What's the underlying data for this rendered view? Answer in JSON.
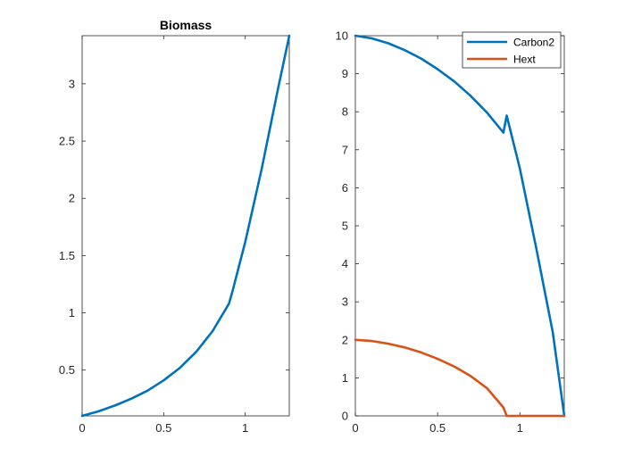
{
  "chart_data": [
    {
      "type": "line",
      "title": "Biomass",
      "xlabel": "",
      "ylabel": "",
      "xlim": [
        0,
        1.27
      ],
      "ylim": [
        0.1,
        3.42
      ],
      "xticks": [
        0,
        0.5,
        1
      ],
      "xtick_labels": [
        "0",
        "0.5",
        "1"
      ],
      "yticks": [
        0.5,
        1,
        1.5,
        2,
        2.5,
        3
      ],
      "ytick_labels": [
        "0.5",
        "1",
        "1.5",
        "2",
        "2.5",
        "3"
      ],
      "grid": false,
      "legend": null,
      "series": [
        {
          "color": "#0072BD",
          "x": [
            0,
            0.1,
            0.2,
            0.3,
            0.4,
            0.5,
            0.6,
            0.7,
            0.8,
            0.9,
            0.92,
            1.0,
            1.1,
            1.2,
            1.27
          ],
          "y": [
            0.1,
            0.14,
            0.19,
            0.25,
            0.32,
            0.41,
            0.52,
            0.66,
            0.84,
            1.08,
            1.18,
            1.62,
            2.25,
            2.95,
            3.42
          ]
        }
      ]
    },
    {
      "type": "line",
      "title": "",
      "xlabel": "",
      "ylabel": "",
      "xlim": [
        0,
        1.27
      ],
      "ylim": [
        0,
        10
      ],
      "xticks": [
        0,
        0.5,
        1
      ],
      "xtick_labels": [
        "0",
        "0.5",
        "1"
      ],
      "yticks": [
        0,
        1,
        2,
        3,
        4,
        5,
        6,
        7,
        8,
        9,
        10
      ],
      "ytick_labels": [
        "0",
        "1",
        "2",
        "3",
        "4",
        "5",
        "6",
        "7",
        "8",
        "9",
        "10"
      ],
      "grid": false,
      "legend": "top-right",
      "series": [
        {
          "name": "Carbon2",
          "color": "#0072BD",
          "x": [
            0,
            0.1,
            0.2,
            0.3,
            0.4,
            0.5,
            0.6,
            0.7,
            0.8,
            0.9,
            0.92,
            1.0,
            1.1,
            1.2,
            1.27
          ],
          "y": [
            10,
            9.93,
            9.8,
            9.62,
            9.4,
            9.12,
            8.8,
            8.42,
            7.98,
            7.45,
            7.9,
            6.5,
            4.4,
            2.2,
            0
          ]
        },
        {
          "name": "Hext",
          "color": "#D95319",
          "x": [
            0,
            0.1,
            0.2,
            0.3,
            0.4,
            0.5,
            0.6,
            0.7,
            0.8,
            0.9,
            0.92,
            1.0,
            1.1,
            1.2,
            1.27
          ],
          "y": [
            2.0,
            1.97,
            1.9,
            1.8,
            1.67,
            1.5,
            1.3,
            1.05,
            0.73,
            0.22,
            0,
            0,
            0,
            0,
            0
          ]
        }
      ]
    }
  ]
}
